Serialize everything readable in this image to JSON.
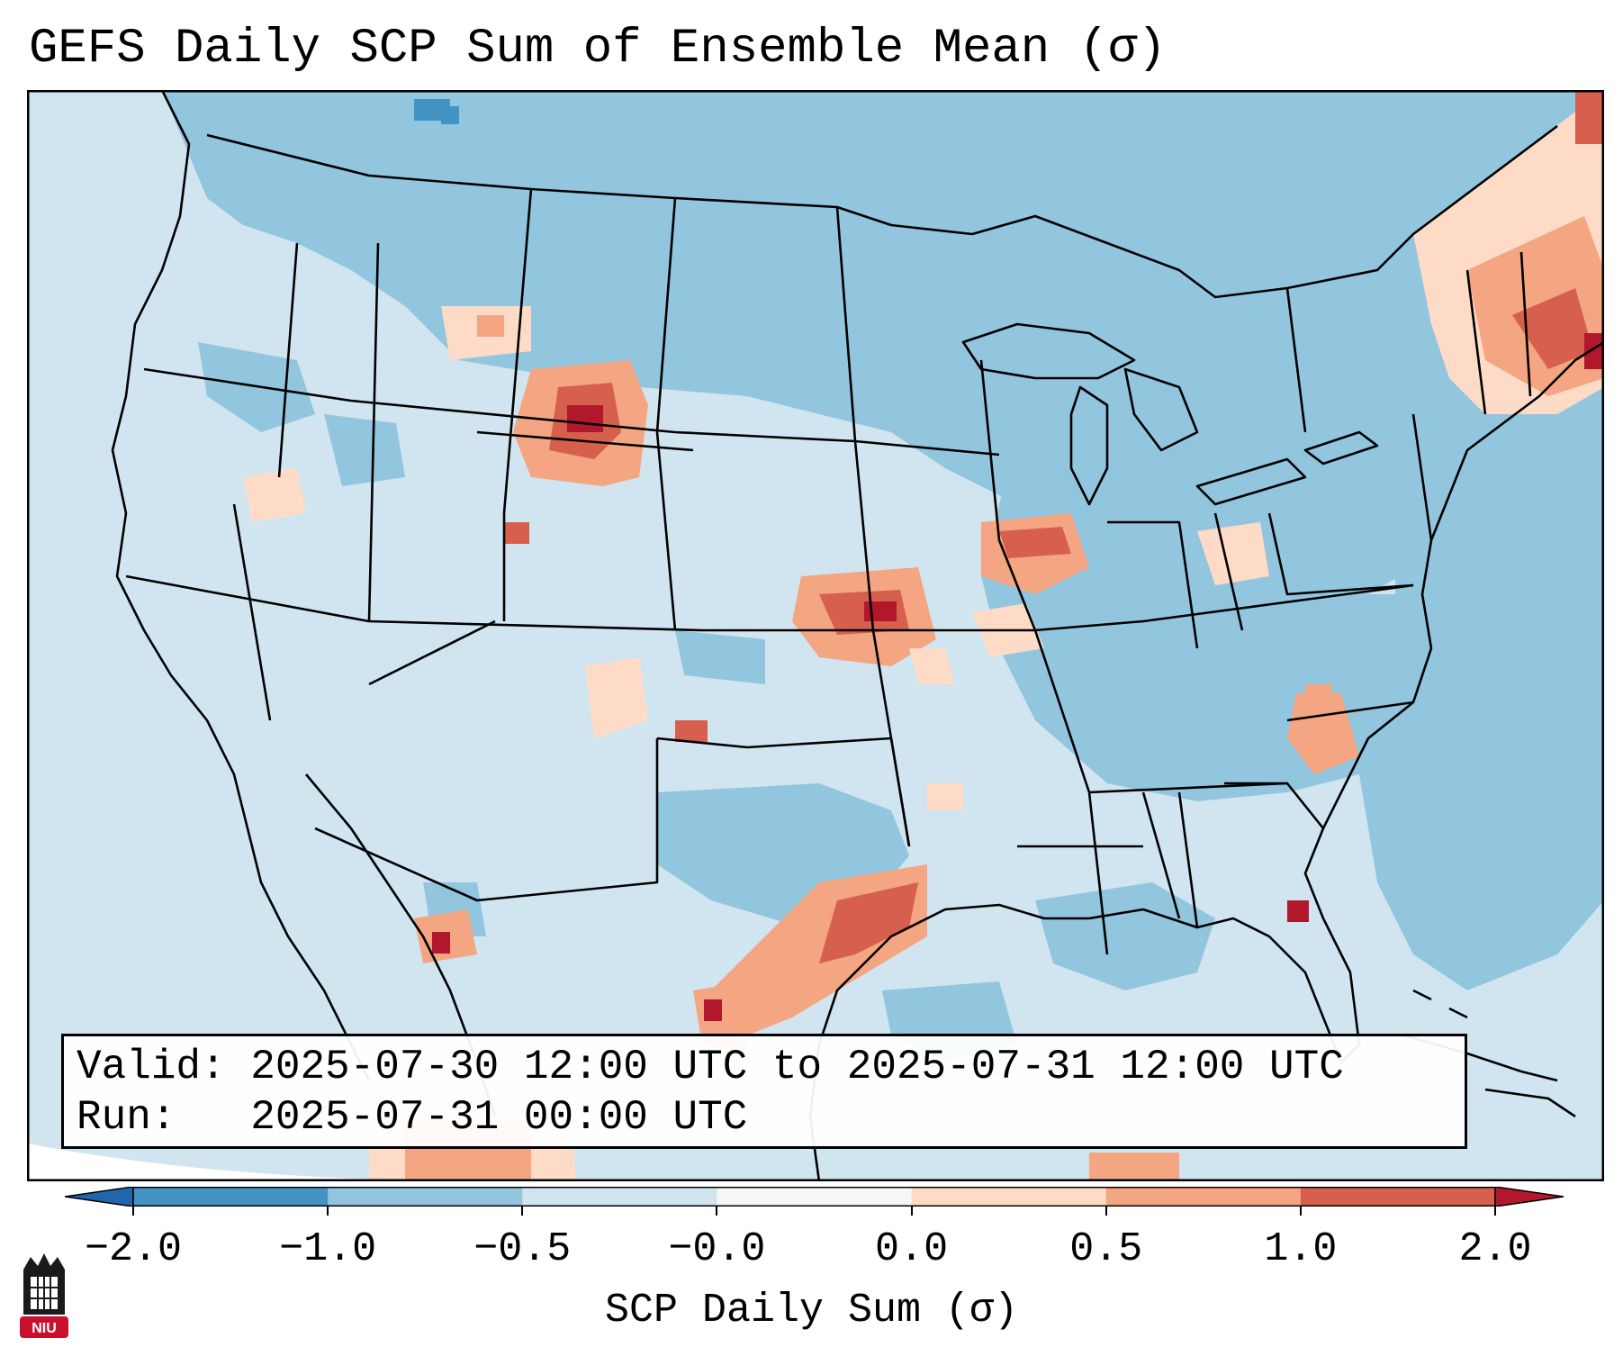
{
  "title": "GEFS Daily SCP Sum of Ensemble Mean (σ)",
  "info": {
    "valid_line": "Valid: 2025-07-30 12:00 UTC to 2025-07-31 12:00 UTC",
    "run_line": "Run:   2025-07-31 00:00 UTC"
  },
  "colorbar": {
    "title": "SCP Daily Sum (σ)",
    "ticks": [
      "−2.0",
      "−1.0",
      "−0.5",
      "−0.0",
      "0.0",
      "0.5",
      "1.0",
      "2.0"
    ],
    "colors": [
      "#4393c3",
      "#92c5de",
      "#d1e5f0",
      "#f7f7f7",
      "#fddbc7",
      "#f4a582",
      "#d6604d"
    ],
    "under_color": "#2166ac",
    "over_color": "#b2182b"
  },
  "map": {
    "background_color": "#d1e5f0",
    "extent_color": "#ffffff",
    "projection": "Lambert Conformal, CONUS"
  },
  "logo": {
    "text": "NIU",
    "color": "#c8102e"
  }
}
